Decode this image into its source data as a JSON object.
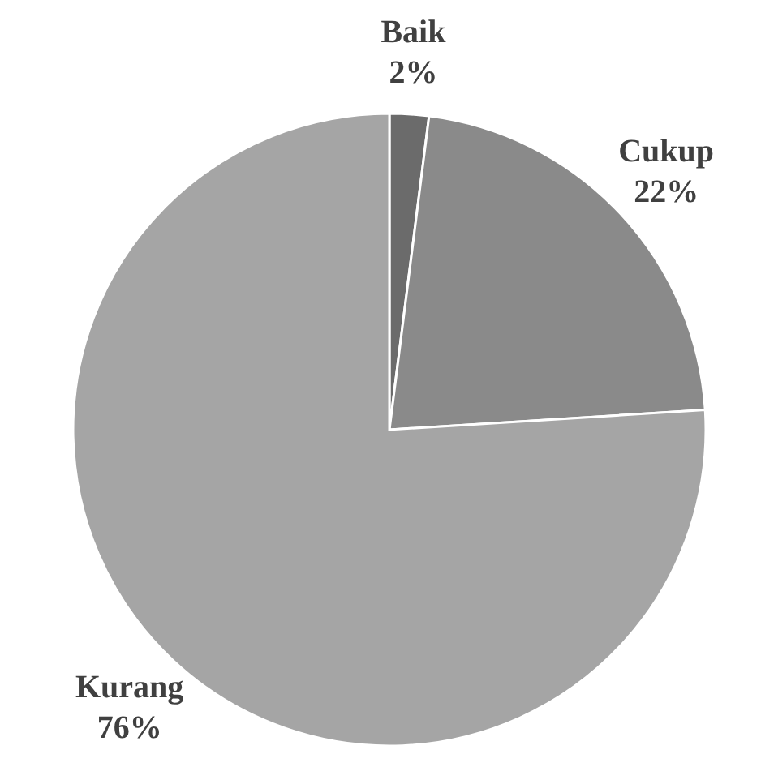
{
  "chart_data": {
    "type": "pie",
    "categories": [
      "Baik",
      "Cukup",
      "Kurang"
    ],
    "values": [
      2,
      22,
      76
    ],
    "colors": [
      "#6b6b6b",
      "#8a8a8a",
      "#a5a5a5"
    ],
    "value_labels": [
      "2%",
      "22%",
      "76%"
    ]
  }
}
